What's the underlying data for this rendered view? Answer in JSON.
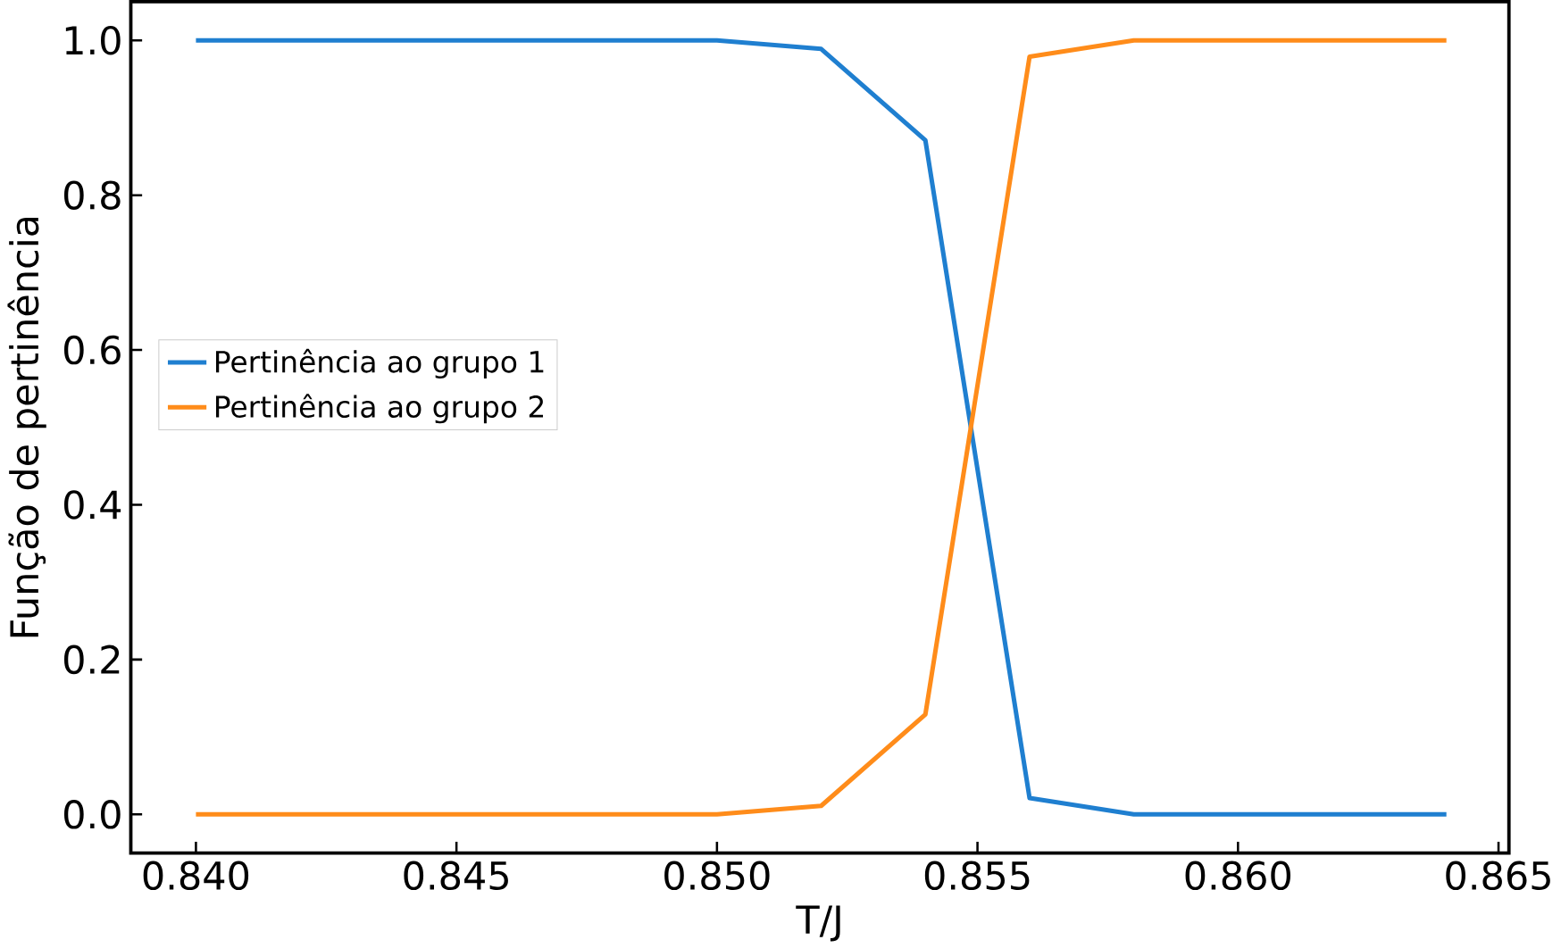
{
  "chart_data": {
    "type": "line",
    "xlabel": "T/J",
    "ylabel": "Função de pertinência",
    "x": [
      0.84,
      0.842,
      0.844,
      0.846,
      0.848,
      0.85,
      0.852,
      0.854,
      0.856,
      0.858,
      0.86,
      0.862,
      0.864
    ],
    "series": [
      {
        "name": "Pertinência ao grupo 1",
        "color": "#1f7fd0",
        "values": [
          1.0,
          1.0,
          1.0,
          1.0,
          1.0,
          1.0,
          0.989,
          0.871,
          0.021,
          0.0,
          0.0,
          0.0,
          0.0
        ]
      },
      {
        "name": "Pertinência ao grupo 2",
        "color": "#ff8c1a",
        "values": [
          0.0,
          0.0,
          0.0,
          0.0,
          0.0,
          0.0,
          0.011,
          0.129,
          0.979,
          1.0,
          1.0,
          1.0,
          1.0
        ]
      }
    ],
    "xlim": [
      0.83875,
      0.8652
    ],
    "ylim": [
      -0.05,
      1.05
    ],
    "xticks": [
      {
        "value": 0.84,
        "label": "0.840"
      },
      {
        "value": 0.845,
        "label": "0.845"
      },
      {
        "value": 0.85,
        "label": "0.850"
      },
      {
        "value": 0.855,
        "label": "0.855"
      },
      {
        "value": 0.86,
        "label": "0.860"
      },
      {
        "value": 0.865,
        "label": "0.865"
      }
    ],
    "yticks": [
      {
        "value": 0.0,
        "label": "0.0"
      },
      {
        "value": 0.2,
        "label": "0.2"
      },
      {
        "value": 0.4,
        "label": "0.4"
      },
      {
        "value": 0.6,
        "label": "0.6"
      },
      {
        "value": 0.8,
        "label": "0.8"
      },
      {
        "value": 1.0,
        "label": "1.0"
      }
    ],
    "grid": false,
    "legend": "center left",
    "marker": "none",
    "line_style": "solid"
  }
}
